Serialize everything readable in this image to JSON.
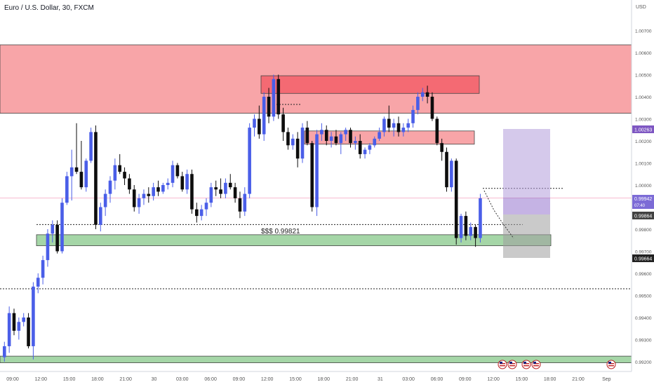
{
  "header": {
    "title": "Euro / U.S. Dollar, 30, FXCM"
  },
  "chart_data": {
    "type": "candlestick",
    "currency": "USD",
    "y_ticks": [
      "1.00700",
      "1.00600",
      "1.00500",
      "1.00400",
      "1.00300",
      "1.00200",
      "1.00100",
      "1.00000",
      "0.99800",
      "0.99700",
      "0.99600",
      "0.99500",
      "0.99400",
      "0.99300",
      "0.99200"
    ],
    "x_ticks": [
      "09:00",
      "12:00",
      "15:00",
      "18:00",
      "21:00",
      "30",
      "03:00",
      "06:00",
      "09:00",
      "12:00",
      "15:00",
      "18:00",
      "21:00",
      "31",
      "03:00",
      "06:00",
      "09:00",
      "12:00",
      "15:00",
      "18:00",
      "21:00",
      "Sep"
    ],
    "price_labels": {
      "p1": "1.00263",
      "p2": "0.99942",
      "p2_sub": "07:40",
      "p3": "0.99864",
      "p4": "0.99664"
    },
    "annotation": "$$$ 0.99821",
    "zones": [
      {
        "kind": "supply",
        "from": 1.00325,
        "to": 1.00635
      },
      {
        "kind": "supply",
        "from": 1.00415,
        "to": 1.00495
      },
      {
        "kind": "supply",
        "from": 1.00185,
        "to": 1.00245
      },
      {
        "kind": "demand",
        "from": 0.99725,
        "to": 0.99775
      },
      {
        "kind": "demand",
        "from": 0.99195,
        "to": 0.99225
      }
    ],
    "levels": [
      {
        "y": 0.99821,
        "style": "dotted"
      },
      {
        "y": 0.9953,
        "style": "dotted"
      },
      {
        "y": 0.99985,
        "style": "dotted"
      },
      {
        "y": 1.00365,
        "style": "dotted"
      }
    ],
    "candles": [
      {
        "o": 0.9922,
        "h": 0.9929,
        "l": 0.992,
        "c": 0.9927
      },
      {
        "o": 0.9927,
        "h": 0.9945,
        "l": 0.9924,
        "c": 0.9942
      },
      {
        "o": 0.9942,
        "h": 0.9944,
        "l": 0.9932,
        "c": 0.9934
      },
      {
        "o": 0.9934,
        "h": 0.994,
        "l": 0.993,
        "c": 0.9938
      },
      {
        "o": 0.9938,
        "h": 0.9942,
        "l": 0.9936,
        "c": 0.994
      },
      {
        "o": 0.994,
        "h": 0.9942,
        "l": 0.9926,
        "c": 0.9927
      },
      {
        "o": 0.9927,
        "h": 0.9956,
        "l": 0.9921,
        "c": 0.9954
      },
      {
        "o": 0.9954,
        "h": 0.996,
        "l": 0.9951,
        "c": 0.9958
      },
      {
        "o": 0.9958,
        "h": 0.9968,
        "l": 0.9955,
        "c": 0.9966
      },
      {
        "o": 0.9966,
        "h": 0.998,
        "l": 0.9963,
        "c": 0.9978
      },
      {
        "o": 0.9978,
        "h": 0.9984,
        "l": 0.9974,
        "c": 0.9982
      },
      {
        "o": 0.9982,
        "h": 0.9984,
        "l": 0.9969,
        "c": 0.997
      },
      {
        "o": 0.997,
        "h": 0.9994,
        "l": 0.9969,
        "c": 0.9992
      },
      {
        "o": 0.9992,
        "h": 1.0006,
        "l": 0.9991,
        "c": 1.0004
      },
      {
        "o": 1.0004,
        "h": 1.0016,
        "l": 0.9993,
        "c": 1.0008
      },
      {
        "o": 1.0008,
        "h": 1.0028,
        "l": 1.0005,
        "c": 1.0006
      },
      {
        "o": 1.0006,
        "h": 1.002,
        "l": 0.9998,
        "c": 0.9999
      },
      {
        "o": 0.9999,
        "h": 1.0012,
        "l": 0.9997,
        "c": 1.0011
      },
      {
        "o": 1.0011,
        "h": 1.0026,
        "l": 1.001,
        "c": 1.0024
      },
      {
        "o": 1.0024,
        "h": 1.0027,
        "l": 0.998,
        "c": 0.9982
      },
      {
        "o": 0.9982,
        "h": 0.9992,
        "l": 0.9979,
        "c": 0.999
      },
      {
        "o": 0.999,
        "h": 0.9998,
        "l": 0.9986,
        "c": 0.9996
      },
      {
        "o": 0.9996,
        "h": 1.0004,
        "l": 0.9992,
        "c": 1.0002
      },
      {
        "o": 1.0002,
        "h": 1.0012,
        "l": 0.9998,
        "c": 1.0009
      },
      {
        "o": 1.0009,
        "h": 1.0014,
        "l": 1.0005,
        "c": 1.0006
      },
      {
        "o": 1.0006,
        "h": 1.0008,
        "l": 1.0,
        "c": 1.0003
      },
      {
        "o": 1.0003,
        "h": 1.0005,
        "l": 0.9996,
        "c": 0.9998
      },
      {
        "o": 0.9998,
        "h": 1.0,
        "l": 0.9988,
        "c": 0.999
      },
      {
        "o": 0.999,
        "h": 0.9996,
        "l": 0.9987,
        "c": 0.9994
      },
      {
        "o": 0.9994,
        "h": 0.9998,
        "l": 0.9991,
        "c": 0.9996
      },
      {
        "o": 0.9996,
        "h": 0.9999,
        "l": 0.9992,
        "c": 0.9995
      },
      {
        "o": 0.9995,
        "h": 1.0001,
        "l": 0.9993,
        "c": 0.9999
      },
      {
        "o": 0.9999,
        "h": 1.0002,
        "l": 0.9995,
        "c": 0.9997
      },
      {
        "o": 0.9997,
        "h": 1.0001,
        "l": 0.9996,
        "c": 1.0
      },
      {
        "o": 1.0,
        "h": 1.0003,
        "l": 0.9998,
        "c": 1.0001
      },
      {
        "o": 1.0001,
        "h": 1.0011,
        "l": 0.9999,
        "c": 1.0009
      },
      {
        "o": 1.0009,
        "h": 1.001,
        "l": 1.0003,
        "c": 1.0004
      },
      {
        "o": 1.0004,
        "h": 1.0006,
        "l": 0.9997,
        "c": 0.9998
      },
      {
        "o": 0.9998,
        "h": 1.0007,
        "l": 0.9996,
        "c": 1.0005
      },
      {
        "o": 1.0005,
        "h": 1.0007,
        "l": 0.9987,
        "c": 0.9989
      },
      {
        "o": 0.9989,
        "h": 0.9992,
        "l": 0.9983,
        "c": 0.9986
      },
      {
        "o": 0.9986,
        "h": 0.9991,
        "l": 0.9984,
        "c": 0.9989
      },
      {
        "o": 0.9989,
        "h": 0.9994,
        "l": 0.9986,
        "c": 0.9992
      },
      {
        "o": 0.9992,
        "h": 1.0001,
        "l": 0.999,
        "c": 0.9999
      },
      {
        "o": 0.9999,
        "h": 1.0002,
        "l": 0.9995,
        "c": 0.9998
      },
      {
        "o": 0.9998,
        "h": 1.0003,
        "l": 0.9994,
        "c": 0.9996
      },
      {
        "o": 0.9996,
        "h": 1.0003,
        "l": 0.9994,
        "c": 1.0001
      },
      {
        "o": 1.0001,
        "h": 1.0005,
        "l": 0.9998,
        "c": 0.9999
      },
      {
        "o": 0.9999,
        "h": 1.0001,
        "l": 0.9992,
        "c": 0.9994
      },
      {
        "o": 0.9994,
        "h": 0.9997,
        "l": 0.9985,
        "c": 0.9988
      },
      {
        "o": 0.9988,
        "h": 0.9999,
        "l": 0.9986,
        "c": 0.9996
      },
      {
        "o": 0.9996,
        "h": 1.0028,
        "l": 0.9994,
        "c": 1.0026
      },
      {
        "o": 1.0026,
        "h": 1.0032,
        "l": 1.0022,
        "c": 1.003
      },
      {
        "o": 1.003,
        "h": 1.0036,
        "l": 1.0021,
        "c": 1.0023
      },
      {
        "o": 1.0023,
        "h": 1.0042,
        "l": 1.002,
        "c": 1.004
      },
      {
        "o": 1.004,
        "h": 1.0044,
        "l": 1.0028,
        "c": 1.0031
      },
      {
        "o": 1.0031,
        "h": 1.005,
        "l": 1.0029,
        "c": 1.0048
      },
      {
        "o": 1.0048,
        "h": 1.005,
        "l": 1.003,
        "c": 1.0032
      },
      {
        "o": 1.0032,
        "h": 1.0035,
        "l": 1.002,
        "c": 1.0024
      },
      {
        "o": 1.0024,
        "h": 1.0026,
        "l": 1.0016,
        "c": 1.0018
      },
      {
        "o": 1.0018,
        "h": 1.0023,
        "l": 1.0016,
        "c": 1.0021
      },
      {
        "o": 1.0021,
        "h": 1.0024,
        "l": 1.0008,
        "c": 1.0012
      },
      {
        "o": 1.0012,
        "h": 1.0028,
        "l": 1.001,
        "c": 1.0026
      },
      {
        "o": 1.0026,
        "h": 1.0029,
        "l": 1.0018,
        "c": 1.0019
      },
      {
        "o": 1.0019,
        "h": 1.002,
        "l": 0.9988,
        "c": 0.999
      },
      {
        "o": 0.999,
        "h": 1.0025,
        "l": 0.9986,
        "c": 1.0023
      },
      {
        "o": 1.0023,
        "h": 1.0028,
        "l": 1.002,
        "c": 1.0025
      },
      {
        "o": 1.0025,
        "h": 1.0027,
        "l": 1.0018,
        "c": 1.002
      },
      {
        "o": 1.002,
        "h": 1.0024,
        "l": 1.0017,
        "c": 1.0022
      },
      {
        "o": 1.0022,
        "h": 1.0025,
        "l": 1.0018,
        "c": 1.0019
      },
      {
        "o": 1.0019,
        "h": 1.0024,
        "l": 1.0014,
        "c": 1.0023
      },
      {
        "o": 1.0023,
        "h": 1.0026,
        "l": 1.002,
        "c": 1.0025
      },
      {
        "o": 1.0025,
        "h": 1.0026,
        "l": 1.0017,
        "c": 1.0019
      },
      {
        "o": 1.0019,
        "h": 1.0022,
        "l": 1.0016,
        "c": 1.002
      },
      {
        "o": 1.002,
        "h": 1.0023,
        "l": 1.0012,
        "c": 1.0014
      },
      {
        "o": 1.0014,
        "h": 1.0017,
        "l": 1.0012,
        "c": 1.0016
      },
      {
        "o": 1.0016,
        "h": 1.0019,
        "l": 1.0014,
        "c": 1.0018
      },
      {
        "o": 1.0018,
        "h": 1.0022,
        "l": 1.0017,
        "c": 1.0021
      },
      {
        "o": 1.0021,
        "h": 1.0026,
        "l": 1.002,
        "c": 1.0024
      },
      {
        "o": 1.0024,
        "h": 1.0031,
        "l": 1.0022,
        "c": 1.003
      },
      {
        "o": 1.003,
        "h": 1.0036,
        "l": 1.0024,
        "c": 1.0026
      },
      {
        "o": 1.0026,
        "h": 1.003,
        "l": 1.0022,
        "c": 1.0028
      },
      {
        "o": 1.0028,
        "h": 1.0031,
        "l": 1.0022,
        "c": 1.0024
      },
      {
        "o": 1.0024,
        "h": 1.0028,
        "l": 1.0022,
        "c": 1.0026
      },
      {
        "o": 1.0026,
        "h": 1.003,
        "l": 1.0024,
        "c": 1.0028
      },
      {
        "o": 1.0028,
        "h": 1.0036,
        "l": 1.0026,
        "c": 1.0034
      },
      {
        "o": 1.0034,
        "h": 1.0042,
        "l": 1.0032,
        "c": 1.004
      },
      {
        "o": 1.004,
        "h": 1.0044,
        "l": 1.0038,
        "c": 1.0042
      },
      {
        "o": 1.0042,
        "h": 1.0045,
        "l": 1.0037,
        "c": 1.004
      },
      {
        "o": 1.004,
        "h": 1.0042,
        "l": 1.0029,
        "c": 1.003
      },
      {
        "o": 1.003,
        "h": 1.0031,
        "l": 1.0018,
        "c": 1.0019
      },
      {
        "o": 1.0019,
        "h": 1.0021,
        "l": 1.0011,
        "c": 1.0015
      },
      {
        "o": 1.0015,
        "h": 1.0017,
        "l": 0.9997,
        "c": 0.9999
      },
      {
        "o": 0.9999,
        "h": 1.0012,
        "l": 0.9997,
        "c": 1.0011
      },
      {
        "o": 1.0011,
        "h": 1.0012,
        "l": 0.9973,
        "c": 0.9976
      },
      {
        "o": 0.9976,
        "h": 0.9987,
        "l": 0.9974,
        "c": 0.9986
      },
      {
        "o": 0.9986,
        "h": 0.9988,
        "l": 0.9975,
        "c": 0.9977
      },
      {
        "o": 0.9977,
        "h": 0.9983,
        "l": 0.9975,
        "c": 0.9981
      },
      {
        "o": 0.9981,
        "h": 0.9982,
        "l": 0.9972,
        "c": 0.9976
      },
      {
        "o": 0.9976,
        "h": 0.9996,
        "l": 0.9974,
        "c": 0.9994
      }
    ]
  }
}
